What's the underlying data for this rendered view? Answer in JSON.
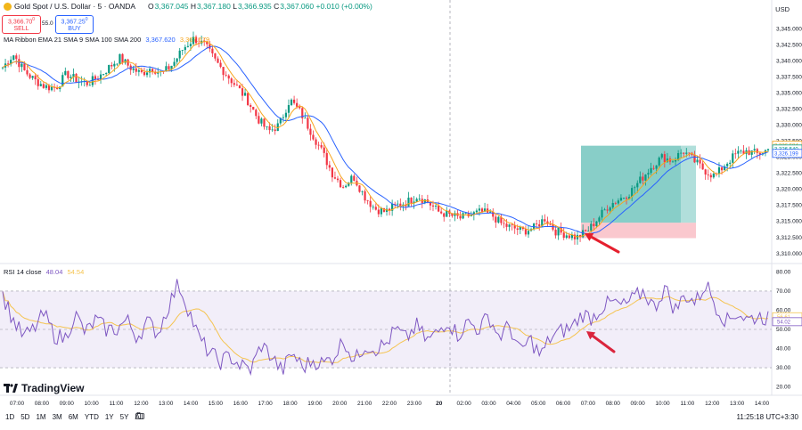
{
  "header": {
    "symbol": "Gold Spot / U.S. Dollar · 5 · OANDA",
    "o_label": "O",
    "o": "3,367.045",
    "h_label": "H",
    "h": "3,367.180",
    "l_label": "L",
    "l": "3,366.935",
    "c_label": "C",
    "c": "3,367.060",
    "change": "+0.010 (+0.00%)"
  },
  "trade": {
    "sell_price": "3,366.70",
    "sell_sup": "0",
    "sell_label": "SELL",
    "spread": "55.0",
    "buy_price": "3,367.25",
    "buy_sup": "0",
    "buy_label": "BUY"
  },
  "indicator_ma": {
    "name": "MA Ribbon EMA 21 SMA 9 SMA 100 SMA 200",
    "v1": "3,367.620",
    "v2": "3,367.679"
  },
  "indicator_rsi": {
    "name": "RSI 14 close",
    "v1": "48.04",
    "v2": "54.54"
  },
  "currency": "USD",
  "brand": "TradingView",
  "timeframes": [
    "1D",
    "5D",
    "1M",
    "3M",
    "6M",
    "YTD",
    "1Y",
    "5Y",
    "All"
  ],
  "clock": "11:25:18 UTC+3:30",
  "colors": {
    "up": "#089981",
    "down": "#f23645",
    "ema": "#f7a51c",
    "sma": "#2962ff",
    "rsi": "#7e57c2",
    "rsi_ma": "#f5c451",
    "tp": "#26a69a",
    "sl": "#f7a4ad",
    "arrow": "#e5202e"
  },
  "chart_data": [
    {
      "type": "candlestick",
      "symbol": "XAUUSD",
      "timeframe": "5",
      "x_ticks": [
        "07:00",
        "08:00",
        "09:00",
        "10:00",
        "11:00",
        "12:00",
        "13:00",
        "14:00",
        "15:00",
        "16:00",
        "17:00",
        "18:00",
        "19:00",
        "20:00",
        "21:00",
        "22:00",
        "23:00",
        "20",
        "02:00",
        "03:00",
        "04:00",
        "05:00",
        "06:00",
        "07:00",
        "08:00",
        "09:00",
        "10:00",
        "11:00",
        "12:00",
        "13:00",
        "14:00"
      ],
      "y_ticks": [
        "3,345.000",
        "3,342.500",
        "3,340.000",
        "3,337.500",
        "3,335.000",
        "3,332.500",
        "3,330.000",
        "3,327.500",
        "3,325.000",
        "3,322.500",
        "3,320.000",
        "3,317.500",
        "3,315.000",
        "3,312.500",
        "3,310.000"
      ],
      "ylim": [
        3309.0,
        3347.0
      ],
      "price_labels": [
        "3,326.584",
        "3,326.540",
        "3,326.199"
      ],
      "path_close": [
        3339,
        3341,
        3338.5,
        3337,
        3336,
        3335.8,
        3338,
        3337,
        3336.5,
        3337.5,
        3339,
        3340.5,
        3339,
        3338,
        3339,
        3338,
        3339.5,
        3342,
        3343.5,
        3342.5,
        3340,
        3338,
        3336,
        3334,
        3331,
        3329,
        3330,
        3334,
        3332,
        3329,
        3326,
        3322.5,
        3320.5,
        3322,
        3319,
        3317,
        3316.5,
        3317.5,
        3318,
        3319,
        3318,
        3316.5,
        3316,
        3315.5,
        3316,
        3316.5,
        3316,
        3314.5,
        3314,
        3313.5,
        3314,
        3315.5,
        3313.5,
        3313,
        3312.5,
        3313.5,
        3315.5,
        3317.5,
        3318.5,
        3319.5,
        3321.5,
        3323.5,
        3325,
        3324.5,
        3326,
        3324.5,
        3323,
        3322,
        3324,
        3325.5,
        3326,
        3325.5,
        3326.2
      ],
      "ema21_last": 3326.584,
      "sma9_last": 3326.54,
      "sma100_last": 3326.199,
      "position": {
        "type": "long",
        "entry": 3314.8,
        "target": 3326.8,
        "stop": 3312.4
      }
    },
    {
      "type": "line",
      "name": "RSI 14 close",
      "y_ticks": [
        "80.00",
        "70.00",
        "60.00",
        "50.00",
        "40.00",
        "30.00",
        "20.00"
      ],
      "ylim": [
        17.5,
        82.5
      ],
      "band": [
        30,
        70
      ],
      "mid": 50,
      "price_labels": [
        "56.61",
        "54.02"
      ],
      "rsi": [
        68,
        55,
        46,
        50,
        58,
        47,
        45,
        58,
        48,
        55,
        50,
        50,
        55,
        46,
        54,
        48,
        62,
        74,
        60,
        45,
        38,
        33,
        36,
        31,
        29,
        42,
        36,
        28,
        38,
        30,
        34,
        32,
        36,
        45,
        33,
        42,
        40,
        42,
        50,
        45,
        52,
        44,
        48,
        55,
        47,
        54,
        50,
        57,
        46,
        52,
        38,
        45,
        36,
        46,
        49,
        51,
        58,
        56,
        62,
        64,
        62,
        66,
        70,
        61,
        72,
        60,
        68,
        64,
        74,
        62,
        54,
        59,
        55,
        57,
        56
      ]
    }
  ]
}
